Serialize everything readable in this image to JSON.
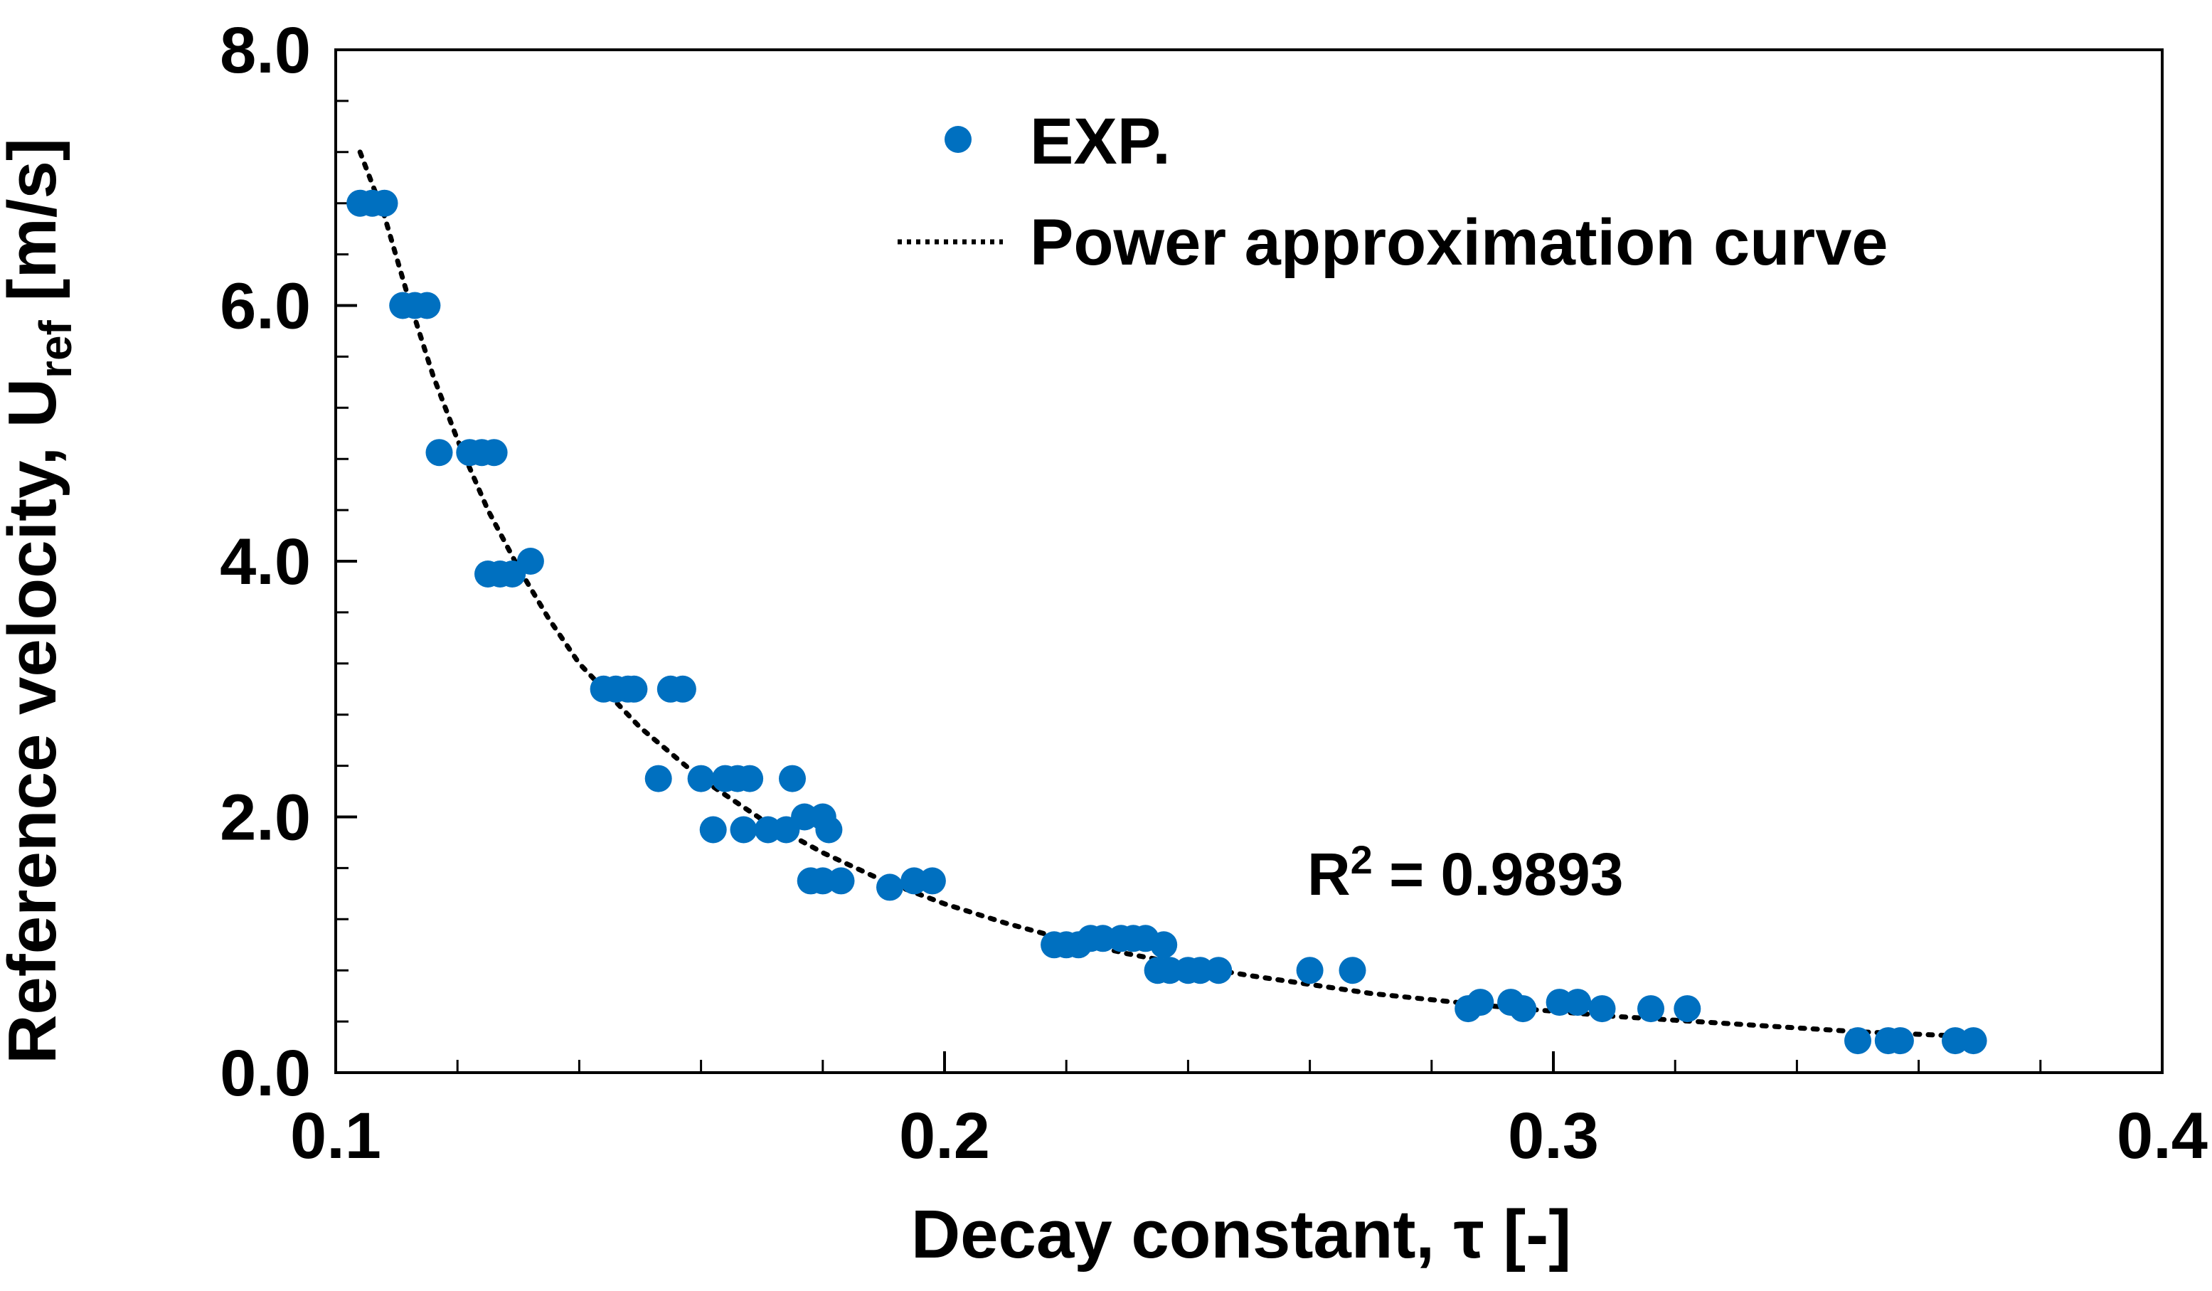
{
  "chart_data": {
    "type": "scatter",
    "title": "",
    "xlabel": "Decay constant, τ [-]",
    "ylabel_main": "Reference velocity,  U",
    "ylabel_sub": "ref",
    "ylabel_unit": " [m/s]",
    "xlim": [
      0.1,
      0.4
    ],
    "ylim": [
      0.0,
      8.0
    ],
    "x_major_ticks": [
      0.1,
      0.2,
      0.3,
      0.4
    ],
    "x_tick_labels": [
      "0.1",
      "0.2",
      "0.3",
      "0.4"
    ],
    "y_major_ticks": [
      0.0,
      2.0,
      4.0,
      6.0,
      8.0
    ],
    "y_tick_labels": [
      "0.0",
      "2.0",
      "4.0",
      "6.0",
      "8.0"
    ],
    "x_minor_step": 0.02,
    "y_minor_step": 0.4,
    "grid": false,
    "legend_position": "top-right",
    "series": [
      {
        "name": "EXP.",
        "kind": "points",
        "color": "#0070c0",
        "x": [
          0.104,
          0.106,
          0.108,
          0.111,
          0.113,
          0.115,
          0.117,
          0.122,
          0.124,
          0.126,
          0.125,
          0.127,
          0.129,
          0.132,
          0.144,
          0.146,
          0.148,
          0.149,
          0.155,
          0.157,
          0.153,
          0.16,
          0.164,
          0.166,
          0.168,
          0.162,
          0.167,
          0.171,
          0.174,
          0.175,
          0.177,
          0.18,
          0.181,
          0.178,
          0.18,
          0.183,
          0.191,
          0.195,
          0.198,
          0.218,
          0.22,
          0.222,
          0.224,
          0.226,
          0.229,
          0.231,
          0.233,
          0.236,
          0.235,
          0.237,
          0.24,
          0.242,
          0.245,
          0.26,
          0.267,
          0.286,
          0.288,
          0.293,
          0.295,
          0.301,
          0.304,
          0.308,
          0.316,
          0.322,
          0.35,
          0.355,
          0.357,
          0.366,
          0.369
        ],
        "y": [
          6.8,
          6.8,
          6.8,
          6.0,
          6.0,
          6.0,
          4.85,
          4.85,
          4.85,
          4.85,
          3.9,
          3.9,
          3.9,
          4.0,
          3.0,
          3.0,
          3.0,
          3.0,
          3.0,
          3.0,
          2.3,
          2.3,
          2.3,
          2.3,
          2.3,
          1.9,
          1.9,
          1.9,
          1.9,
          2.3,
          2.0,
          2.0,
          1.9,
          1.5,
          1.5,
          1.5,
          1.45,
          1.5,
          1.5,
          1.0,
          1.0,
          1.0,
          1.05,
          1.05,
          1.05,
          1.05,
          1.05,
          1.0,
          0.8,
          0.8,
          0.8,
          0.8,
          0.8,
          0.8,
          0.8,
          0.5,
          0.55,
          0.55,
          0.5,
          0.55,
          0.55,
          0.5,
          0.5,
          0.5,
          0.25,
          0.25,
          0.25,
          0.25,
          0.25
        ]
      },
      {
        "name": "Power approximation curve",
        "kind": "dotted-line",
        "color": "#000000",
        "x": [
          0.104,
          0.108,
          0.112,
          0.116,
          0.12,
          0.125,
          0.13,
          0.135,
          0.14,
          0.145,
          0.15,
          0.16,
          0.17,
          0.18,
          0.19,
          0.2,
          0.21,
          0.22,
          0.23,
          0.24,
          0.25,
          0.26,
          0.27,
          0.28,
          0.29,
          0.3,
          0.31,
          0.32,
          0.33,
          0.34,
          0.35,
          0.36,
          0.37
        ],
        "y": [
          7.2,
          6.7,
          6.05,
          5.45,
          4.95,
          4.4,
          3.95,
          3.55,
          3.2,
          2.95,
          2.7,
          2.3,
          1.98,
          1.72,
          1.5,
          1.32,
          1.17,
          1.04,
          0.93,
          0.84,
          0.76,
          0.69,
          0.62,
          0.57,
          0.52,
          0.48,
          0.44,
          0.41,
          0.38,
          0.35,
          0.32,
          0.3,
          0.28
        ]
      }
    ],
    "annotation": {
      "r2_prefix": "R",
      "r2_sup": "2",
      "r2_value": " = 0.9893"
    }
  }
}
